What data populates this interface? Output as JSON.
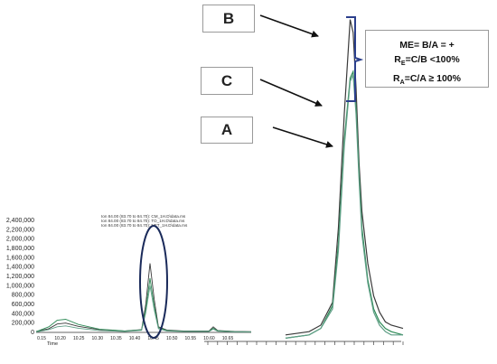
{
  "labels": {
    "b": "B",
    "c": "C",
    "a": "A"
  },
  "formulas": {
    "me": "ME= B/A = +",
    "re_prefix": "R",
    "re_sub": "E",
    "re_rest": "=C/B <100%",
    "ra_prefix": "R",
    "ra_sub": "A",
    "ra_rest": "=C/A ≥ 100%"
  },
  "colors": {
    "trace_b": "#3a3a3a",
    "trace_c": "#2e8b57",
    "trace_a": "#5f9e86",
    "bracket": "#2b3f8c",
    "ellipse": "#1a2a5a"
  },
  "chart_data": [
    {
      "type": "line",
      "panel": "chromatogram-overview",
      "title": "",
      "legend": [
        "Ion 84.00 (83.70 to 84.70): CM_1H.D\\data.ms",
        "Ion 84.00 (83.70 to 84.70): TO_1H.D\\data.ms",
        "Ion 84.00 (83.70 to 84.70): NET_1H.D\\data.ms"
      ],
      "xlabel": "Time",
      "ylabel": "",
      "x_ticks": [
        "0.15",
        "10.20",
        "10.25",
        "10.30",
        "10.35",
        "10.40",
        "10.45",
        "10.50",
        "10.55",
        "10.60",
        "10.65"
      ],
      "y_ticks": [
        "0",
        "200,000",
        "400,000",
        "600,000",
        "800,000",
        "1,000,000",
        "1,200,000",
        "1,400,000",
        "1,600,000",
        "1,800,000",
        "2,000,000",
        "2,200,000",
        "2,400,000"
      ],
      "xlim": [
        10.15,
        10.66
      ],
      "ylim": [
        0,
        2400000
      ],
      "series": [
        {
          "color": "trace_b",
          "x": [
            10.15,
            10.18,
            10.2,
            10.22,
            10.25,
            10.3,
            10.36,
            10.4,
            10.41,
            10.42,
            10.43,
            10.44,
            10.46,
            10.5,
            10.56,
            10.57,
            10.58,
            10.62,
            10.66
          ],
          "y": [
            20000,
            80000,
            180000,
            200000,
            130000,
            60000,
            30000,
            60000,
            600000,
            1480000,
            700000,
            120000,
            50000,
            30000,
            30000,
            120000,
            40000,
            20000,
            15000
          ]
        },
        {
          "color": "trace_c",
          "x": [
            10.15,
            10.18,
            10.2,
            10.22,
            10.25,
            10.3,
            10.36,
            10.4,
            10.41,
            10.42,
            10.43,
            10.44,
            10.46,
            10.5,
            10.56,
            10.57,
            10.58,
            10.62,
            10.66
          ],
          "y": [
            15000,
            120000,
            260000,
            280000,
            170000,
            70000,
            30000,
            55000,
            500000,
            1160000,
            560000,
            100000,
            40000,
            25000,
            25000,
            90000,
            35000,
            15000,
            10000
          ]
        },
        {
          "color": "trace_a",
          "x": [
            10.15,
            10.18,
            10.2,
            10.22,
            10.25,
            10.3,
            10.36,
            10.4,
            10.41,
            10.42,
            10.43,
            10.44,
            10.46,
            10.5,
            10.56,
            10.57,
            10.58,
            10.62,
            10.66
          ],
          "y": [
            10000,
            60000,
            120000,
            140000,
            90000,
            40000,
            20000,
            45000,
            420000,
            1000000,
            480000,
            80000,
            30000,
            20000,
            20000,
            70000,
            25000,
            10000,
            8000
          ]
        }
      ]
    },
    {
      "type": "line",
      "panel": "peak-zoom",
      "title": "",
      "xlabel": "",
      "ylabel": "",
      "xlim": [
        0,
        20
      ],
      "ylim": [
        0,
        1
      ],
      "series": [
        {
          "label": "B",
          "color": "trace_b",
          "x": [
            0,
            4,
            6,
            8,
            9,
            10,
            11,
            11.5,
            12,
            12.5,
            13,
            14,
            15,
            16,
            17,
            18,
            20
          ],
          "y": [
            0.02,
            0.03,
            0.05,
            0.12,
            0.35,
            0.7,
            0.99,
            0.95,
            0.78,
            0.55,
            0.4,
            0.24,
            0.14,
            0.09,
            0.06,
            0.05,
            0.04
          ]
        },
        {
          "label": "C",
          "color": "trace_c",
          "x": [
            0,
            4,
            6,
            8,
            9,
            10,
            11,
            11.5,
            12,
            12.5,
            13,
            14,
            15,
            16,
            17,
            18,
            20
          ],
          "y": [
            0.01,
            0.02,
            0.04,
            0.11,
            0.3,
            0.62,
            0.81,
            0.83,
            0.72,
            0.52,
            0.35,
            0.19,
            0.1,
            0.06,
            0.04,
            0.03,
            0.02
          ]
        },
        {
          "label": "A",
          "color": "trace_a",
          "x": [
            0,
            4,
            6,
            8,
            9,
            10,
            11,
            11.5,
            12,
            12.5,
            13,
            14,
            15,
            16,
            17,
            18,
            20
          ],
          "y": [
            0.01,
            0.02,
            0.04,
            0.1,
            0.28,
            0.6,
            0.8,
            0.82,
            0.7,
            0.5,
            0.33,
            0.18,
            0.09,
            0.05,
            0.03,
            0.02,
            0.02
          ]
        }
      ]
    }
  ]
}
